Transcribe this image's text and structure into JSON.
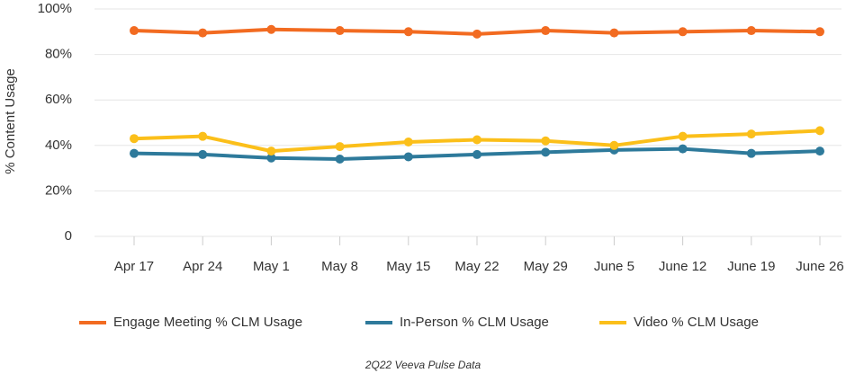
{
  "chart_data": {
    "type": "line",
    "y_label": "% Content Usage",
    "footnote": "2Q22 Veeva Pulse Data",
    "categories": [
      "Apr 17",
      "Apr 24",
      "May 1",
      "May 8",
      "May 15",
      "May 22",
      "May 29",
      "June 5",
      "June 12",
      "June 19",
      "June 26"
    ],
    "series": [
      {
        "name": "Engage Meeting % CLM Usage",
        "color": "#f26b21",
        "values": [
          90.5,
          89.5,
          91,
          90.5,
          90,
          89,
          90.5,
          89.5,
          90,
          90.5,
          90
        ]
      },
      {
        "name": "In-Person % CLM Usage",
        "color": "#2e7a9b",
        "values": [
          36.5,
          36,
          34.5,
          34,
          35,
          36,
          37,
          38,
          38.5,
          36.5,
          37.5
        ]
      },
      {
        "name": "Video % CLM Usage",
        "color": "#fbbf1a",
        "values": [
          43,
          44,
          37.5,
          39.5,
          41.5,
          42.5,
          42,
          40,
          44,
          45,
          46.5
        ]
      }
    ],
    "ylim": [
      0,
      100
    ],
    "yticks": [
      0,
      {
        "value": 20,
        "label": "20%"
      },
      {
        "value": 40,
        "label": "40%"
      },
      {
        "value": 60,
        "label": "60%"
      },
      {
        "value": 80,
        "label": "80%"
      },
      {
        "value": 100,
        "label": "100%"
      }
    ],
    "grid": true,
    "legend": "bottom"
  }
}
